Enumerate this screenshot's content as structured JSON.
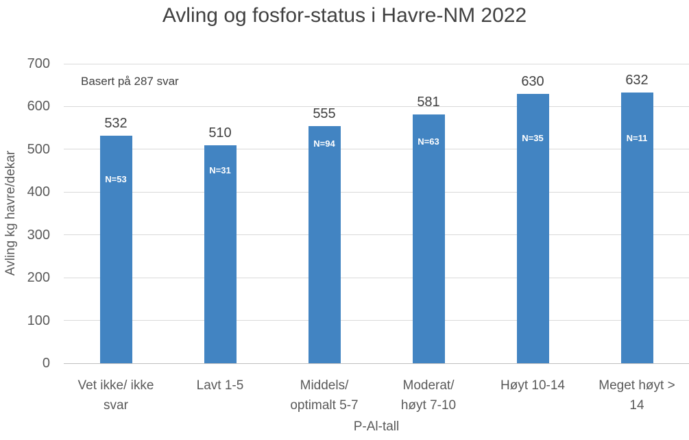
{
  "chart_data": {
    "type": "bar",
    "title": "Avling og fosfor-status i Havre-NM 2022",
    "annotation": "Basert på 287 svar",
    "xlabel": "P-Al-tall",
    "ylabel": "Avling kg havre/dekar",
    "categories": [
      "Vet ikke/ ikke svar",
      "Lavt 1-5",
      "Middels/ optimalt 5-7",
      "Moderat/ høyt 7-10",
      "Høyt 10-14",
      "Meget høyt > 14"
    ],
    "category_lines": [
      [
        "Vet ikke/ ikke",
        "svar"
      ],
      [
        "Lavt 1-5"
      ],
      [
        "Middels/",
        "optimalt 5-7"
      ],
      [
        "Moderat/",
        "høyt 7-10"
      ],
      [
        "Høyt 10-14"
      ],
      [
        "Meget høyt >",
        "14"
      ]
    ],
    "values": [
      532,
      510,
      555,
      581,
      630,
      632
    ],
    "bar_labels": [
      "N=53",
      "N=31",
      "N=94",
      "N=63",
      "N=35",
      "N=11"
    ],
    "yticks": [
      0,
      100,
      200,
      300,
      400,
      500,
      600,
      700
    ],
    "ylim": [
      0,
      700
    ],
    "grid": true,
    "legend": false,
    "colors": {
      "bar": "#4284C2",
      "title_text": "#404040",
      "tick_text": "#595959",
      "value_label_text": "#404040",
      "bar_label_text": "#FFFFFF",
      "gridline": "#D9D9D9",
      "axis_line": "#BFBFBF",
      "background": "#FFFFFF"
    }
  }
}
